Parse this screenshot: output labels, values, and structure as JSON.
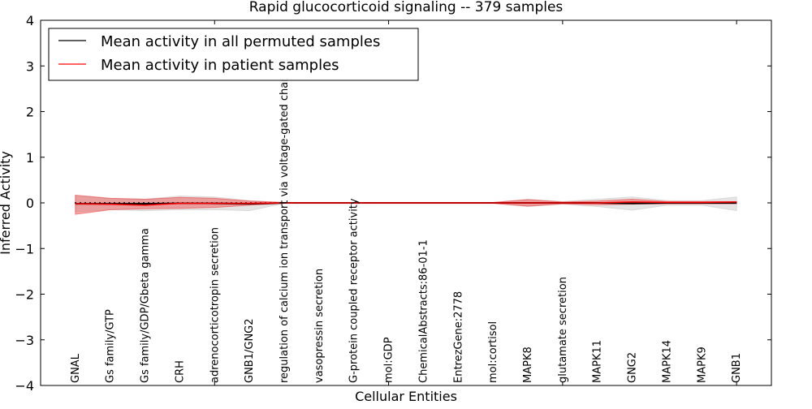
{
  "chart_data": {
    "type": "line",
    "title": "Rapid glucocorticoid signaling -- 379 samples",
    "xlabel": "Cellular Entities",
    "ylabel": "Inferred Activity",
    "ylim": [
      -4,
      4
    ],
    "xlim": [
      0,
      21
    ],
    "yticks": [
      4,
      3,
      2,
      1,
      0,
      -1,
      -2,
      -3,
      -4
    ],
    "ytick_labels": [
      "4",
      "3",
      "2",
      "1",
      "0",
      "−1",
      "−2",
      "−3",
      "−4"
    ],
    "categories": [
      "GNAL",
      "Gs family/GTP",
      "Gs family/GDP/Gbeta gamma",
      "CRH",
      "adrenocorticotropin secretion",
      "GNB1/GNG2",
      "regulation of calcium ion transport via voltage-gated channel",
      "vasopressin secretion",
      "G-protein coupled receptor activity",
      "mol:GDP",
      "ChemicalAbstracts:86-01-1",
      "EntrezGene:2778",
      "mol:cortisol",
      "MAPK8",
      "glutamate secretion",
      "MAPK11",
      "GNG2",
      "MAPK14",
      "MAPK9",
      "GNB1"
    ],
    "legend": {
      "placement": "top-left",
      "entries": [
        "Mean activity in all permuted samples",
        "Mean activity in patient samples"
      ]
    },
    "series": [
      {
        "name": "Mean activity in all permuted samples",
        "color": "#000000",
        "values": [
          -0.02,
          -0.02,
          -0.02,
          -0.01,
          -0.01,
          -0.02,
          0,
          0,
          0,
          0,
          0,
          0,
          0,
          0,
          0,
          0,
          -0.01,
          0,
          0,
          0
        ],
        "band_upper": [
          0.15,
          0.1,
          0.08,
          0.15,
          0.13,
          0.05,
          0.01,
          0.01,
          0.01,
          0.01,
          0.01,
          0.01,
          0.01,
          0.08,
          0.03,
          0.08,
          0.13,
          0.05,
          0.05,
          0.13
        ],
        "band_lower": [
          -0.2,
          -0.15,
          -0.17,
          -0.15,
          -0.15,
          -0.17,
          -0.01,
          -0.01,
          -0.01,
          -0.01,
          -0.01,
          -0.01,
          -0.01,
          -0.08,
          -0.03,
          -0.08,
          -0.16,
          -0.05,
          -0.05,
          -0.17
        ],
        "band_color": "#cccccc"
      },
      {
        "name": "Mean activity in patient samples",
        "color": "#ff0000",
        "values": [
          -0.02,
          -0.03,
          -0.05,
          -0.01,
          -0.01,
          -0.01,
          0,
          0,
          0,
          0,
          0,
          0,
          0,
          0,
          0,
          0,
          0.02,
          0.01,
          0.01,
          0.02
        ],
        "band_upper": [
          0.17,
          0.1,
          0.08,
          0.12,
          0.1,
          0.04,
          0.01,
          0.01,
          0.01,
          0.01,
          0.01,
          0.01,
          0.01,
          0.07,
          0.02,
          0.04,
          0.08,
          0.03,
          0.03,
          0.03
        ],
        "band_lower": [
          -0.25,
          -0.15,
          -0.13,
          -0.12,
          -0.1,
          -0.05,
          -0.01,
          -0.01,
          -0.01,
          -0.01,
          -0.01,
          -0.01,
          -0.01,
          -0.07,
          -0.02,
          -0.04,
          -0.03,
          -0.02,
          -0.02,
          -0.02
        ],
        "band_color": "#ee4444"
      }
    ]
  }
}
